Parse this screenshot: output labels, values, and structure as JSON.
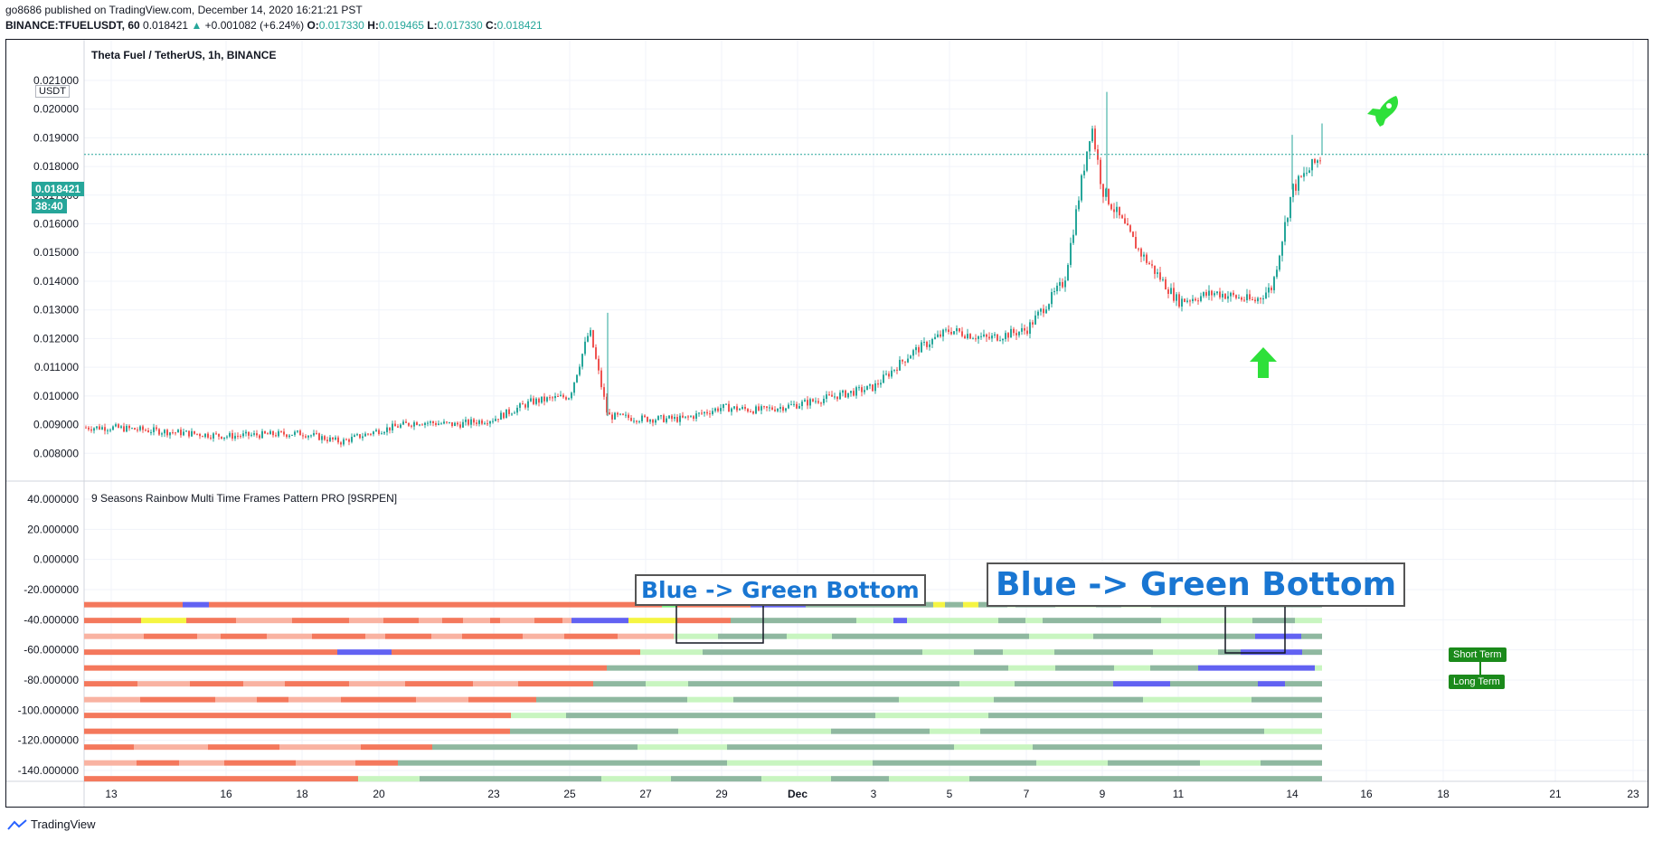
{
  "header": {
    "author_line": "go8686 published on TradingView.com, December 14, 2020 16:21:21 PST",
    "symbol": "BINANCE:TFUELUSDT, 60",
    "last": "0.018421",
    "change": "+0.001082 (+6.24%)",
    "o_label": "O:",
    "o_value": "0.017330",
    "h_label": "H:",
    "h_value": "0.019465",
    "l_label": "L:",
    "l_value": "0.017330",
    "c_label": "C:",
    "c_value": "0.018421",
    "up_arrow": "▲"
  },
  "main_pane": {
    "title": "Theta Fuel / TetherUS, 1h, BINANCE",
    "currency_badge": "USDT",
    "price_label": "0.018421",
    "countdown": "38:40"
  },
  "indicator_pane": {
    "title": "9 Seasons Rainbow Multi Time Frames Pattern PRO [9SRPEN]",
    "tag_short": "Short Term",
    "tag_long": "Long Term"
  },
  "annotations": {
    "small": "Blue -> Green Bottom",
    "large": "Blue -> Green Bottom"
  },
  "footer": {
    "brand": "TradingView"
  },
  "colors": {
    "up": "#26a69a",
    "down": "#ef5350",
    "grid": "#f0f3fa",
    "annotation_text": "#1976d2",
    "rocket": "#2ee03a",
    "rainbow_red": "#f4785c",
    "rainbow_salmon": "#f9b3a2",
    "rainbow_teal": "#8fb8a0",
    "rainbow_light_green": "#c8f5c0",
    "rainbow_blue": "#6262f2",
    "rainbow_purple": "#8b4bd6",
    "rainbow_yellow": "#f5f542",
    "rainbow_lime": "#7ef07e"
  },
  "icons": [
    "rocket-icon",
    "up-arrow-icon",
    "tradingview-logo-icon"
  ],
  "chart_data": [
    {
      "type": "candlestick",
      "title": "Theta Fuel / TetherUS, 1h, BINANCE",
      "y_axis_ticks": [
        "0.008000",
        "0.009000",
        "0.010000",
        "0.011000",
        "0.012000",
        "0.013000",
        "0.014000",
        "0.015000",
        "0.016000",
        "0.017000",
        "0.018000",
        "0.019000",
        "0.020000",
        "0.021000"
      ],
      "x_axis_ticks": [
        "13",
        "16",
        "18",
        "20",
        "23",
        "25",
        "27",
        "29",
        "Dec",
        "3",
        "5",
        "7",
        "9",
        "11",
        "14",
        "16",
        "18",
        "21",
        "23"
      ],
      "ylim": [
        0.0076,
        0.0221
      ],
      "last_price": 0.018421,
      "close_path": [
        [
          "13",
          0.0089
        ],
        [
          "16",
          0.0086
        ],
        [
          "18",
          0.0087
        ],
        [
          "19",
          0.0084
        ],
        [
          "20",
          0.0088
        ],
        [
          "21",
          0.0091
        ],
        [
          "22",
          0.009
        ],
        [
          "23",
          0.0092
        ],
        [
          "24",
          0.0098
        ],
        [
          "25",
          0.01
        ],
        [
          "25.5",
          0.0123
        ],
        [
          "26",
          0.0093
        ],
        [
          "27",
          0.0092
        ],
        [
          "28",
          0.0092
        ],
        [
          "29",
          0.0096
        ],
        [
          "30",
          0.0095
        ],
        [
          "Dec",
          0.0097
        ],
        [
          "2",
          0.01
        ],
        [
          "3",
          0.0103
        ],
        [
          "4",
          0.0115
        ],
        [
          "5",
          0.0123
        ],
        [
          "6",
          0.012
        ],
        [
          "7",
          0.0123
        ],
        [
          "8",
          0.014
        ],
        [
          "8.7",
          0.0195
        ],
        [
          "9",
          0.0172
        ],
        [
          "10",
          0.015
        ],
        [
          "11",
          0.0133
        ],
        [
          "12",
          0.0136
        ],
        [
          "13",
          0.0133
        ],
        [
          "13.5",
          0.0138
        ],
        [
          "14",
          0.0172
        ],
        [
          "14.7",
          0.0184
        ]
      ]
    },
    {
      "type": "heatmap",
      "title": "9 Seasons Rainbow Multi Time Frames Pattern PRO [9SRPEN]",
      "y_axis_ticks": [
        "40.000000",
        "20.000000",
        "0.000000",
        "-20.000000",
        "-40.000000",
        "-60.000000",
        "-80.000000",
        "-100.000000",
        "-120.000000",
        "-140.000000"
      ],
      "rows": 12
    }
  ]
}
